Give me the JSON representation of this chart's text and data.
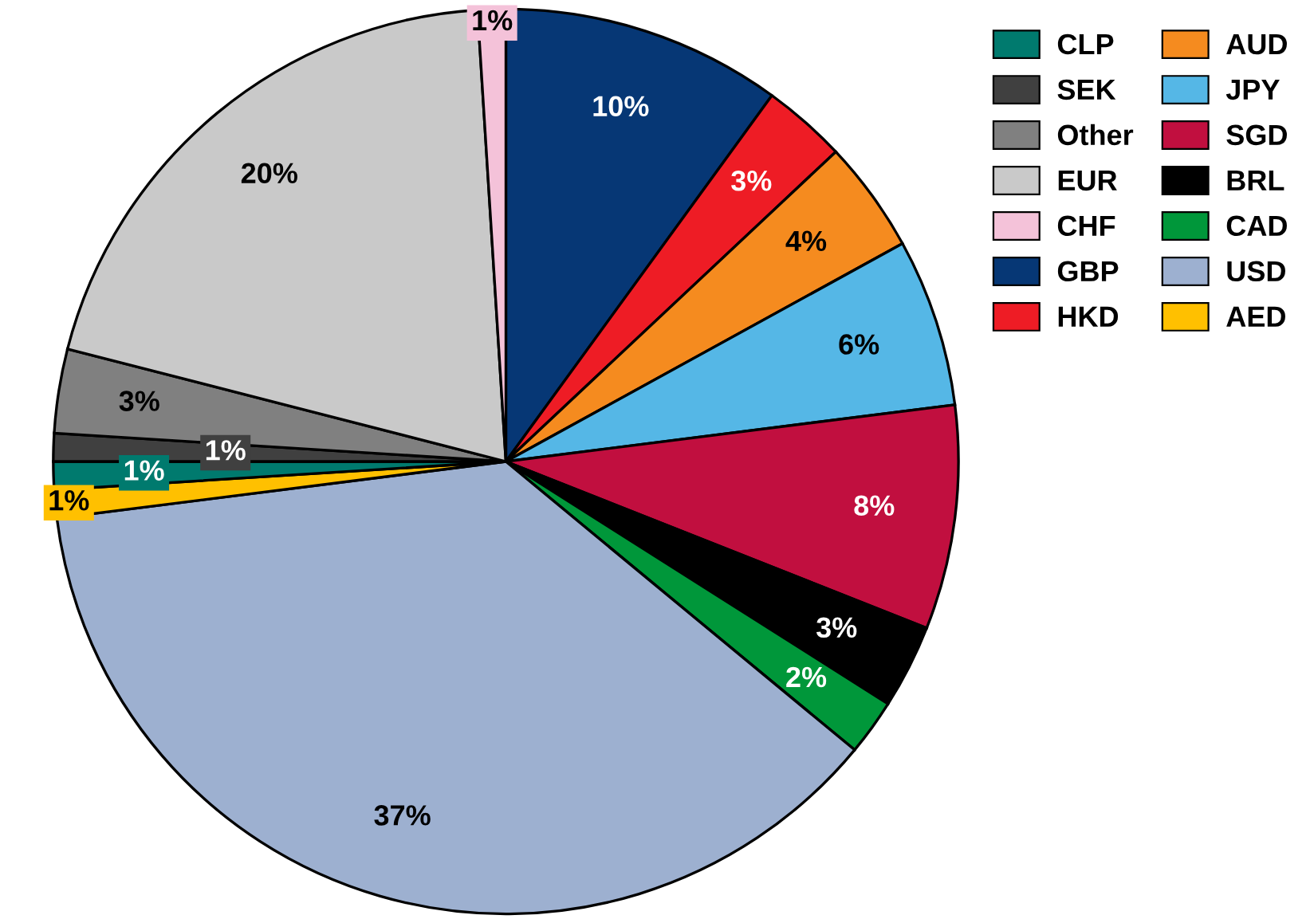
{
  "chart_data": {
    "type": "pie",
    "categories": [
      "GBP",
      "HKD",
      "AUD",
      "JPY",
      "SGD",
      "BRL",
      "CAD",
      "USD",
      "AED",
      "CLP",
      "SEK",
      "Other",
      "EUR",
      "CHF"
    ],
    "values": [
      10,
      3,
      4,
      6,
      8,
      3,
      2,
      37,
      1,
      1,
      1,
      3,
      20,
      1
    ],
    "colors": [
      "#063775",
      "#ee1c25",
      "#f58b1f",
      "#55b7e6",
      "#c10f3f",
      "#000000",
      "#00973a",
      "#9db0d0",
      "#ffc000",
      "#007a6e",
      "#404040",
      "#808080",
      "#c9c9c9",
      "#f4c2d9"
    ],
    "value_labels": [
      "10%",
      "3%",
      "4%",
      "6%",
      "8%",
      "3%",
      "2%",
      "37%",
      "1%",
      "1%",
      "1%",
      "3%",
      "20%",
      "1%"
    ],
    "legend": "top right"
  }
}
